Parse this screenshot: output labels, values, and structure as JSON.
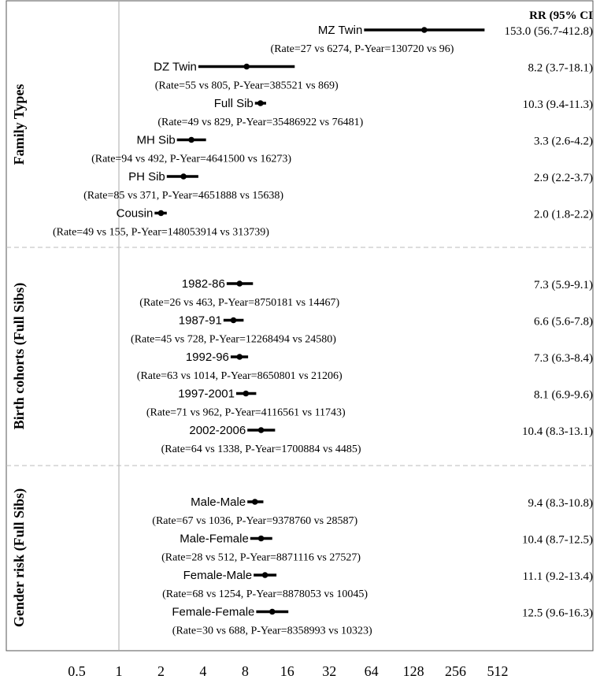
{
  "chart_data": {
    "type": "forest",
    "x_scale": "log2",
    "xlim": [
      0.5,
      512
    ],
    "x_ticks": [
      "0.5",
      "1",
      "2",
      "4",
      "8",
      "16",
      "32",
      "64",
      "128",
      "256",
      "512"
    ],
    "x_tick_values": [
      0.5,
      1,
      2,
      4,
      8,
      16,
      32,
      64,
      128,
      256,
      512
    ],
    "reference_line": 1,
    "column_header": "RR (95% CI",
    "groups": [
      {
        "label": "Family Types",
        "rows": [
          {
            "label": "MZ Twin",
            "estimate": 153.0,
            "lower": 56.7,
            "upper": 412.8,
            "rr_text": "153.0 (56.7-412.8)",
            "stats_text": "(Rate=27 vs 6274, P-Year=130720 vs 96)"
          },
          {
            "label": "DZ Twin",
            "estimate": 8.2,
            "lower": 3.7,
            "upper": 18.1,
            "rr_text": "8.2 (3.7-18.1)",
            "stats_text": "(Rate=55 vs 805, P-Year=385521 vs 869)"
          },
          {
            "label": "Full Sib",
            "estimate": 10.3,
            "lower": 9.4,
            "upper": 11.3,
            "rr_text": "10.3 (9.4-11.3)",
            "stats_text": "(Rate=49 vs 829, P-Year=35486922 vs 76481)"
          },
          {
            "label": "MH Sib",
            "estimate": 3.3,
            "lower": 2.6,
            "upper": 4.2,
            "rr_text": "3.3 (2.6-4.2)",
            "stats_text": "(Rate=94 vs 492, P-Year=4641500 vs 16273)"
          },
          {
            "label": "PH Sib",
            "estimate": 2.9,
            "lower": 2.2,
            "upper": 3.7,
            "rr_text": "2.9 (2.2-3.7)",
            "stats_text": "(Rate=85 vs 371, P-Year=4651888 vs 15638)"
          },
          {
            "label": "Cousin",
            "estimate": 2.0,
            "lower": 1.8,
            "upper": 2.2,
            "rr_text": "2.0 (1.8-2.2)",
            "stats_text": "(Rate=49 vs 155, P-Year=148053914 vs 313739)"
          }
        ]
      },
      {
        "label": "Birth cohorts (Full Sibs)",
        "rows": [
          {
            "label": "1982-86",
            "estimate": 7.3,
            "lower": 5.9,
            "upper": 9.1,
            "rr_text": "7.3 (5.9-9.1)",
            "stats_text": "(Rate=26 vs 463, P-Year=8750181 vs 14467)"
          },
          {
            "label": "1987-91",
            "estimate": 6.6,
            "lower": 5.6,
            "upper": 7.8,
            "rr_text": "6.6 (5.6-7.8)",
            "stats_text": "(Rate=45 vs 728, P-Year=12268494 vs 24580)"
          },
          {
            "label": "1992-96",
            "estimate": 7.3,
            "lower": 6.3,
            "upper": 8.4,
            "rr_text": "7.3 (6.3-8.4)",
            "stats_text": "(Rate=63 vs 1014, P-Year=8650801 vs 21206)"
          },
          {
            "label": "1997-2001",
            "estimate": 8.1,
            "lower": 6.9,
            "upper": 9.6,
            "rr_text": "8.1 (6.9-9.6)",
            "stats_text": "(Rate=71 vs 962, P-Year=4116561 vs 11743)"
          },
          {
            "label": "2002-2006",
            "estimate": 10.4,
            "lower": 8.3,
            "upper": 13.1,
            "rr_text": "10.4 (8.3-13.1)",
            "stats_text": "(Rate=64 vs 1338, P-Year=1700884 vs 4485)"
          }
        ]
      },
      {
        "label": "Gender risk (Full Sibs)",
        "rows": [
          {
            "label": "Male-Male",
            "estimate": 9.4,
            "lower": 8.3,
            "upper": 10.8,
            "rr_text": "9.4 (8.3-10.8)",
            "stats_text": "(Rate=67 vs 1036, P-Year=9378760 vs 28587)"
          },
          {
            "label": "Male-Female",
            "estimate": 10.4,
            "lower": 8.7,
            "upper": 12.5,
            "rr_text": "10.4 (8.7-12.5)",
            "stats_text": "(Rate=28 vs 512, P-Year=8871116 vs 27527)"
          },
          {
            "label": "Female-Male",
            "estimate": 11.1,
            "lower": 9.2,
            "upper": 13.4,
            "rr_text": "11.1 (9.2-13.4)",
            "stats_text": "(Rate=68 vs 1254, P-Year=8878053 vs 10045)"
          },
          {
            "label": "Female-Female",
            "estimate": 12.5,
            "lower": 9.6,
            "upper": 16.3,
            "rr_text": "12.5 (9.6-16.3)",
            "stats_text": "(Rate=30 vs 688, P-Year=8358993 vs 10323)"
          }
        ]
      }
    ],
    "colors": {
      "line": "#000000",
      "frame": "#555555",
      "reference": "#aaaaaa",
      "divider": "#bbbbbb"
    }
  }
}
